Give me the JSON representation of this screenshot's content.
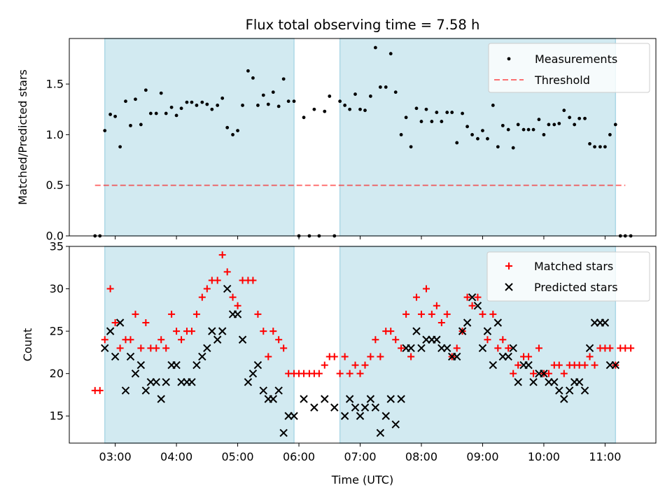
{
  "title": "Flux total observing time = 7.58 h",
  "colors": {
    "band": "#add8e6",
    "measurement": "#000000",
    "threshold": "#ff0000",
    "matched": "#ff0000",
    "predicted": "#000000"
  },
  "chart_data": [
    {
      "name": "ratio",
      "type": "scatter",
      "ylabel": "Matched/Predicted stars",
      "xlim": [
        2.25,
        11.83
      ],
      "ylim": [
        0,
        1.95
      ],
      "yticks": [
        0.0,
        0.5,
        1.0,
        1.5
      ],
      "ytick_labels": [
        "0.0",
        "0.5",
        "1.0",
        "1.5"
      ],
      "grid": false,
      "legend_position": "upper right",
      "shaded_bands": [
        [
          2.83,
          5.92
        ],
        [
          6.67,
          11.17
        ]
      ],
      "threshold": {
        "label": "Threshold",
        "value": 0.5,
        "x_range": [
          2.67,
          11.33
        ]
      },
      "measurements": {
        "label": "Measurements",
        "x": [
          2.67,
          2.75,
          2.83,
          2.92,
          3.0,
          3.08,
          3.17,
          3.25,
          3.33,
          3.42,
          3.5,
          3.58,
          3.67,
          3.75,
          3.83,
          3.92,
          4.0,
          4.08,
          4.17,
          4.25,
          4.33,
          4.42,
          4.5,
          4.58,
          4.67,
          4.75,
          4.83,
          4.92,
          5.0,
          5.08,
          5.17,
          5.25,
          5.33,
          5.42,
          5.5,
          5.58,
          5.67,
          5.75,
          5.83,
          5.92,
          6.0,
          6.08,
          6.17,
          6.25,
          6.33,
          6.42,
          6.5,
          6.58,
          6.67,
          6.75,
          6.83,
          6.92,
          7.0,
          7.08,
          7.17,
          7.25,
          7.33,
          7.42,
          7.5,
          7.58,
          7.67,
          7.75,
          7.83,
          7.92,
          8.0,
          8.08,
          8.17,
          8.25,
          8.33,
          8.42,
          8.5,
          8.58,
          8.67,
          8.75,
          8.83,
          8.92,
          9.0,
          9.08,
          9.17,
          9.25,
          9.33,
          9.42,
          9.5,
          9.58,
          9.67,
          9.75,
          9.83,
          9.92,
          10.0,
          10.08,
          10.17,
          10.25,
          10.33,
          10.42,
          10.5,
          10.58,
          10.67,
          10.75,
          10.83,
          10.92,
          11.0,
          11.08,
          11.17,
          11.25,
          11.33,
          11.42
        ],
        "y": [
          0.0,
          0.0,
          1.04,
          1.2,
          1.18,
          0.88,
          1.33,
          1.09,
          1.35,
          1.1,
          1.44,
          1.21,
          1.21,
          1.41,
          1.21,
          1.27,
          1.19,
          1.26,
          1.32,
          1.32,
          1.29,
          1.32,
          1.3,
          1.25,
          1.29,
          1.36,
          1.07,
          1.0,
          1.04,
          1.29,
          1.63,
          1.56,
          1.29,
          1.39,
          1.3,
          1.42,
          1.28,
          1.55,
          1.33,
          1.33,
          0.0,
          1.17,
          0.0,
          1.25,
          0.0,
          1.23,
          1.38,
          0.0,
          1.33,
          1.29,
          1.25,
          1.4,
          1.25,
          1.24,
          1.38,
          1.86,
          1.47,
          1.47,
          1.8,
          1.42,
          1.0,
          1.17,
          0.88,
          1.26,
          1.13,
          1.25,
          1.13,
          1.22,
          1.13,
          1.22,
          1.22,
          0.92,
          1.21,
          1.08,
          1.0,
          0.96,
          1.04,
          0.96,
          1.29,
          0.88,
          1.09,
          1.05,
          0.87,
          1.1,
          1.05,
          1.05,
          1.05,
          1.15,
          1.0,
          1.1,
          1.1,
          1.11,
          1.24,
          1.17,
          1.1,
          1.16,
          1.16,
          0.91,
          0.88,
          0.88,
          0.88,
          1.0,
          1.1,
          0.0,
          0.0,
          0.0
        ]
      }
    },
    {
      "name": "counts",
      "type": "scatter",
      "xlabel": "Time (UTC)",
      "ylabel": "Count",
      "xlim": [
        2.25,
        11.83
      ],
      "ylim": [
        11.8,
        35.0
      ],
      "xticks": [
        3,
        4,
        5,
        6,
        7,
        8,
        9,
        10,
        11
      ],
      "xtick_labels": [
        "03:00",
        "04:00",
        "05:00",
        "06:00",
        "07:00",
        "08:00",
        "09:00",
        "10:00",
        "11:00"
      ],
      "yticks": [
        15,
        20,
        25,
        30,
        35
      ],
      "ytick_labels": [
        "15",
        "20",
        "25",
        "30",
        "35"
      ],
      "grid": false,
      "legend_position": "upper right",
      "shaded_bands": [
        [
          2.83,
          5.92
        ],
        [
          6.67,
          11.17
        ]
      ],
      "series": [
        {
          "label": "Matched stars",
          "marker": "plus",
          "x": [
            2.67,
            2.75,
            2.83,
            2.92,
            3.0,
            3.08,
            3.17,
            3.25,
            3.33,
            3.42,
            3.5,
            3.58,
            3.67,
            3.75,
            3.83,
            3.92,
            4.0,
            4.08,
            4.17,
            4.25,
            4.33,
            4.42,
            4.5,
            4.58,
            4.67,
            4.75,
            4.83,
            4.92,
            5.0,
            5.08,
            5.17,
            5.25,
            5.33,
            5.42,
            5.5,
            5.58,
            5.67,
            5.75,
            5.83,
            5.92,
            6.0,
            6.08,
            6.17,
            6.25,
            6.33,
            6.42,
            6.5,
            6.58,
            6.67,
            6.75,
            6.83,
            6.92,
            7.0,
            7.08,
            7.17,
            7.25,
            7.33,
            7.42,
            7.5,
            7.58,
            7.67,
            7.75,
            7.83,
            7.92,
            8.0,
            8.08,
            8.17,
            8.25,
            8.33,
            8.42,
            8.5,
            8.58,
            8.67,
            8.75,
            8.83,
            8.92,
            9.0,
            9.08,
            9.17,
            9.25,
            9.33,
            9.42,
            9.5,
            9.58,
            9.67,
            9.75,
            9.83,
            9.92,
            10.0,
            10.08,
            10.17,
            10.25,
            10.33,
            10.42,
            10.5,
            10.58,
            10.67,
            10.75,
            10.83,
            10.92,
            11.0,
            11.08,
            11.17,
            11.25,
            11.33,
            11.42
          ],
          "y": [
            18,
            18,
            24,
            30,
            26,
            23,
            24,
            24,
            27,
            23,
            26,
            23,
            23,
            24,
            23,
            27,
            25,
            24,
            25,
            25,
            27,
            29,
            30,
            31,
            31,
            34,
            32,
            29,
            28,
            31,
            31,
            31,
            27,
            25,
            22,
            25,
            24,
            23,
            20,
            20,
            20,
            20,
            20,
            20,
            20,
            21,
            22,
            22,
            20,
            22,
            20,
            21,
            20,
            21,
            22,
            24,
            22,
            25,
            25,
            24,
            23,
            27,
            22,
            29,
            27,
            30,
            27,
            28,
            26,
            27,
            22,
            23,
            25,
            29,
            28,
            29,
            27,
            24,
            27,
            23,
            24,
            23,
            20,
            21,
            22,
            22,
            20,
            23,
            20,
            20,
            21,
            21,
            20,
            21,
            21,
            21,
            21,
            22,
            21,
            23,
            23,
            23,
            21,
            23,
            23,
            23
          ],
          "color": "#ff0000"
        },
        {
          "label": "Predicted stars",
          "marker": "x",
          "x": [
            2.83,
            2.92,
            3.0,
            3.08,
            3.17,
            3.25,
            3.33,
            3.42,
            3.5,
            3.58,
            3.67,
            3.75,
            3.83,
            3.92,
            4.0,
            4.08,
            4.17,
            4.25,
            4.33,
            4.42,
            4.5,
            4.58,
            4.67,
            4.75,
            4.83,
            4.92,
            5.0,
            5.08,
            5.17,
            5.25,
            5.33,
            5.42,
            5.5,
            5.58,
            5.67,
            5.75,
            5.83,
            5.92,
            6.08,
            6.25,
            6.42,
            6.58,
            6.75,
            6.83,
            6.92,
            7.0,
            7.08,
            7.17,
            7.25,
            7.33,
            7.42,
            7.5,
            7.58,
            7.67,
            7.75,
            7.83,
            7.92,
            8.0,
            8.08,
            8.17,
            8.25,
            8.33,
            8.42,
            8.5,
            8.58,
            8.67,
            8.75,
            8.83,
            8.92,
            9.0,
            9.08,
            9.17,
            9.25,
            9.33,
            9.42,
            9.5,
            9.58,
            9.67,
            9.75,
            9.83,
            9.92,
            10.0,
            10.08,
            10.17,
            10.25,
            10.33,
            10.42,
            10.5,
            10.58,
            10.67,
            10.75,
            10.83,
            10.92,
            11.0,
            11.08,
            11.17
          ],
          "y": [
            23,
            25,
            22,
            26,
            18,
            22,
            20,
            21,
            18,
            19,
            19,
            17,
            19,
            21,
            21,
            19,
            19,
            19,
            21,
            22,
            23,
            25,
            24,
            25,
            30,
            27,
            27,
            24,
            19,
            20,
            21,
            18,
            17,
            17,
            18,
            13,
            15,
            15,
            17,
            16,
            17,
            16,
            15,
            17,
            16,
            15,
            16,
            17,
            16,
            13,
            15,
            17,
            14,
            17,
            23,
            23,
            25,
            23,
            24,
            24,
            24,
            23,
            23,
            22,
            22,
            25,
            26,
            29,
            28,
            23,
            25,
            21,
            26,
            22,
            22,
            23,
            19,
            21,
            21,
            19,
            20,
            20,
            19,
            19,
            18,
            17,
            18,
            19,
            19,
            18,
            23,
            26,
            26,
            26,
            21,
            21
          ],
          "color": "#000000"
        }
      ]
    }
  ]
}
